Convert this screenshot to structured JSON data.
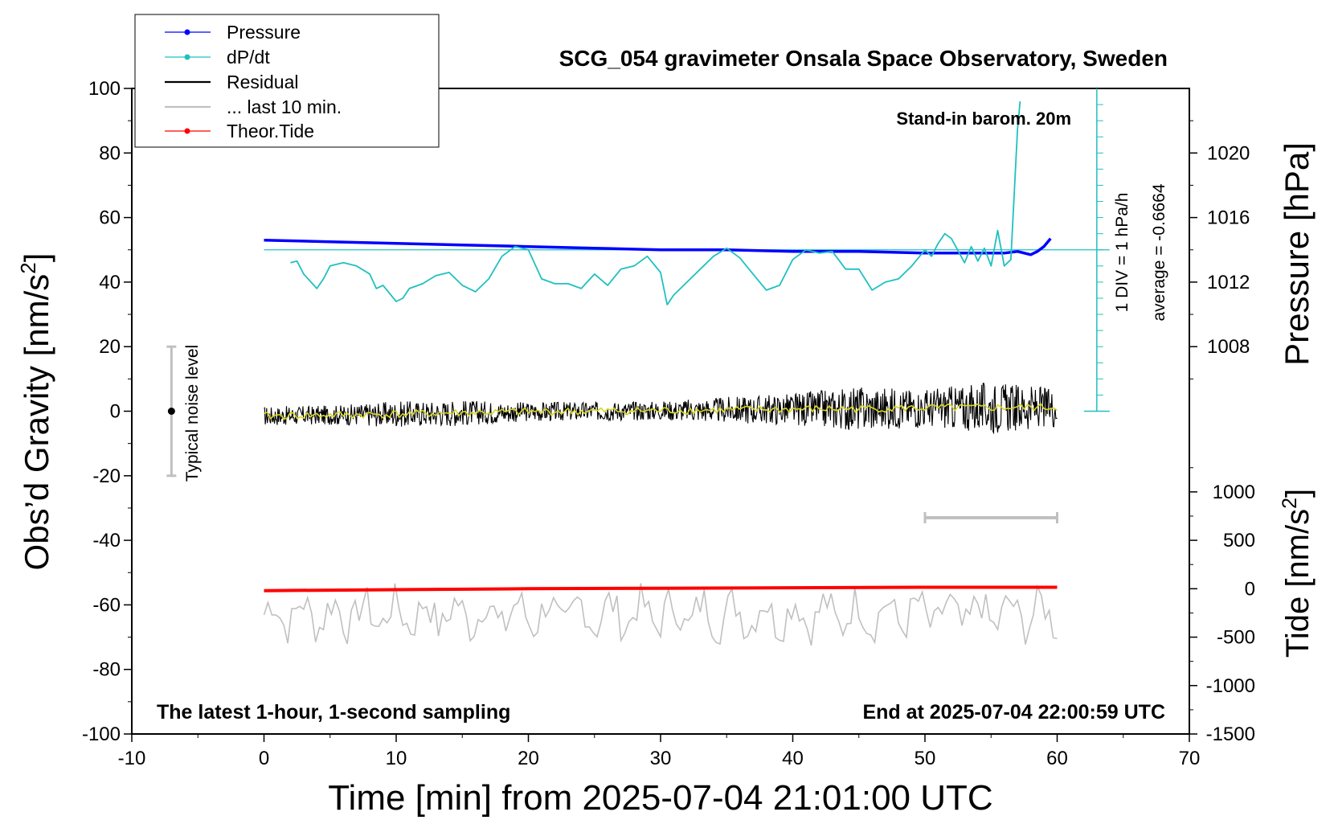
{
  "chart_data": {
    "type": "line",
    "title": "SCG_054 gravimeter Onsala Space Observatory, Sweden",
    "xlabel": "Time [min] from 2025-07-04 21:01:00 UTC",
    "ylabel_left": "Obs’d Gravity [nm/s",
    "ylabel_left_sup": "2",
    "ylabel_left_end": "]",
    "ylabel_right_pressure": "Pressure [hPa]",
    "ylabel_right_tide": "Tide [nm/s",
    "ylabel_right_tide_sup": "2",
    "ylabel_right_tide_end": "]",
    "xlim": [
      -10,
      70
    ],
    "ylim": [
      -100,
      100
    ],
    "pressure_lim": [
      1004,
      1024
    ],
    "tide_lim": [
      -1500,
      1500
    ],
    "x_ticks": [
      "-10",
      "0",
      "10",
      "20",
      "30",
      "40",
      "50",
      "60",
      "70"
    ],
    "y_ticks": [
      "-100",
      "-80",
      "-60",
      "-40",
      "-20",
      "0",
      "20",
      "40",
      "60",
      "80",
      "100"
    ],
    "pressure_ticks": [
      "1008",
      "1012",
      "1016",
      "1020"
    ],
    "tide_ticks": [
      "-1500",
      "-1000",
      "-500",
      "0",
      "500",
      "1000"
    ],
    "legend": {
      "position": "top-left",
      "items": [
        {
          "label": "Pressure",
          "color": "#0000ff",
          "marker": true
        },
        {
          "label": "dP/dt",
          "color": "#20c0c0",
          "marker": true
        },
        {
          "label": "Residual",
          "color": "#000000",
          "marker": false
        },
        {
          "label": "... last 10 min.",
          "color": "#c0c0c0",
          "marker": false
        },
        {
          "label": "Theor.Tide",
          "color": "#ff0000",
          "marker": true
        }
      ]
    },
    "annotations": {
      "barometer": "Stand-in barom. 20m",
      "div_label": "1 DIV = 1 hPa/h",
      "average": "average = -0.6664",
      "noise": "Typical noise level",
      "bottom_left": "The latest 1-hour, 1-second sampling",
      "bottom_right": "End at 2025-07-04 22:00:59 UTC"
    },
    "noise_bar": {
      "x": -7,
      "y_range": [
        -20,
        20
      ]
    },
    "last10_bar": {
      "x_range": [
        50,
        60
      ],
      "y": -33
    },
    "dpdt_baseline_pressure": 1014,
    "series": [
      {
        "name": "Pressure",
        "axis": "pressure",
        "color": "#0000ff",
        "x": [
          0,
          5,
          10,
          15,
          20,
          25,
          30,
          35,
          40,
          45,
          50,
          52,
          54,
          56,
          57,
          58,
          58.5,
          59,
          59.5
        ],
        "values": [
          1014.6,
          1014.5,
          1014.4,
          1014.3,
          1014.2,
          1014.1,
          1014.0,
          1014.0,
          1013.9,
          1013.9,
          1013.8,
          1013.8,
          1013.8,
          1013.8,
          1013.9,
          1013.7,
          1013.9,
          1014.2,
          1014.7
        ]
      },
      {
        "name": "dP/dt",
        "axis": "pressure",
        "color": "#20c0c0",
        "x": [
          2,
          2.5,
          3,
          4,
          4.5,
          5,
          6,
          7,
          8,
          8.5,
          9,
          10,
          10.5,
          11,
          12,
          13,
          14,
          15,
          16,
          17,
          18,
          19,
          20,
          21,
          22,
          23,
          24,
          25,
          26,
          27,
          28,
          29,
          30,
          30.5,
          31,
          32,
          33,
          34,
          35,
          36,
          37,
          38,
          39,
          40,
          41,
          42,
          43,
          44,
          45,
          46,
          47,
          48,
          49,
          50,
          50.5,
          51,
          51.5,
          52,
          53,
          53.5,
          54,
          54.5,
          55,
          55.5,
          56,
          56.5,
          57,
          57.2
        ],
        "values": [
          1013.2,
          1013.3,
          1012.5,
          1011.6,
          1012.2,
          1013.0,
          1013.2,
          1013.0,
          1012.5,
          1011.6,
          1011.8,
          1010.8,
          1011.0,
          1011.6,
          1011.9,
          1012.4,
          1012.6,
          1011.8,
          1011.4,
          1012.2,
          1013.6,
          1014.2,
          1014.0,
          1012.2,
          1011.9,
          1011.9,
          1011.6,
          1012.5,
          1011.8,
          1012.8,
          1013.0,
          1013.6,
          1012.6,
          1010.6,
          1011.2,
          1012.0,
          1012.8,
          1013.6,
          1014.1,
          1013.5,
          1012.5,
          1011.5,
          1011.8,
          1013.4,
          1014.0,
          1013.8,
          1013.9,
          1012.8,
          1012.8,
          1011.5,
          1012.0,
          1012.2,
          1013.0,
          1014.0,
          1013.6,
          1014.4,
          1015.0,
          1014.7,
          1013.2,
          1014.2,
          1013.3,
          1014.1,
          1013.0,
          1015.2,
          1013.0,
          1013.4,
          1021.5,
          1023.2
        ]
      },
      {
        "name": "Residual",
        "axis": "gravity",
        "color": "#000000",
        "x": [
          0,
          5,
          10,
          15,
          20,
          25,
          30,
          35,
          40,
          45,
          50,
          55,
          60
        ],
        "values": [
          -1.5,
          -1.2,
          -0.9,
          -0.5,
          -0.2,
          0.0,
          0.2,
          0.4,
          0.6,
          0.8,
          1.0,
          1.1,
          1.2
        ],
        "noise_amplitude": [
          3,
          3,
          4,
          4,
          3,
          3,
          3,
          4,
          5,
          7,
          6,
          8,
          6
        ]
      },
      {
        "name": "... last 10 min.",
        "axis": "gravity",
        "color": "#c0c0c0",
        "x": [
          0,
          60
        ],
        "values": [
          -63,
          -63
        ],
        "noise_amplitude": 7
      },
      {
        "name": "Theor.Tide",
        "axis": "tide",
        "color": "#ff0000",
        "x": [
          0,
          10,
          20,
          30,
          40,
          50,
          60
        ],
        "values": [
          -20,
          -10,
          0,
          5,
          10,
          15,
          15
        ]
      }
    ]
  }
}
